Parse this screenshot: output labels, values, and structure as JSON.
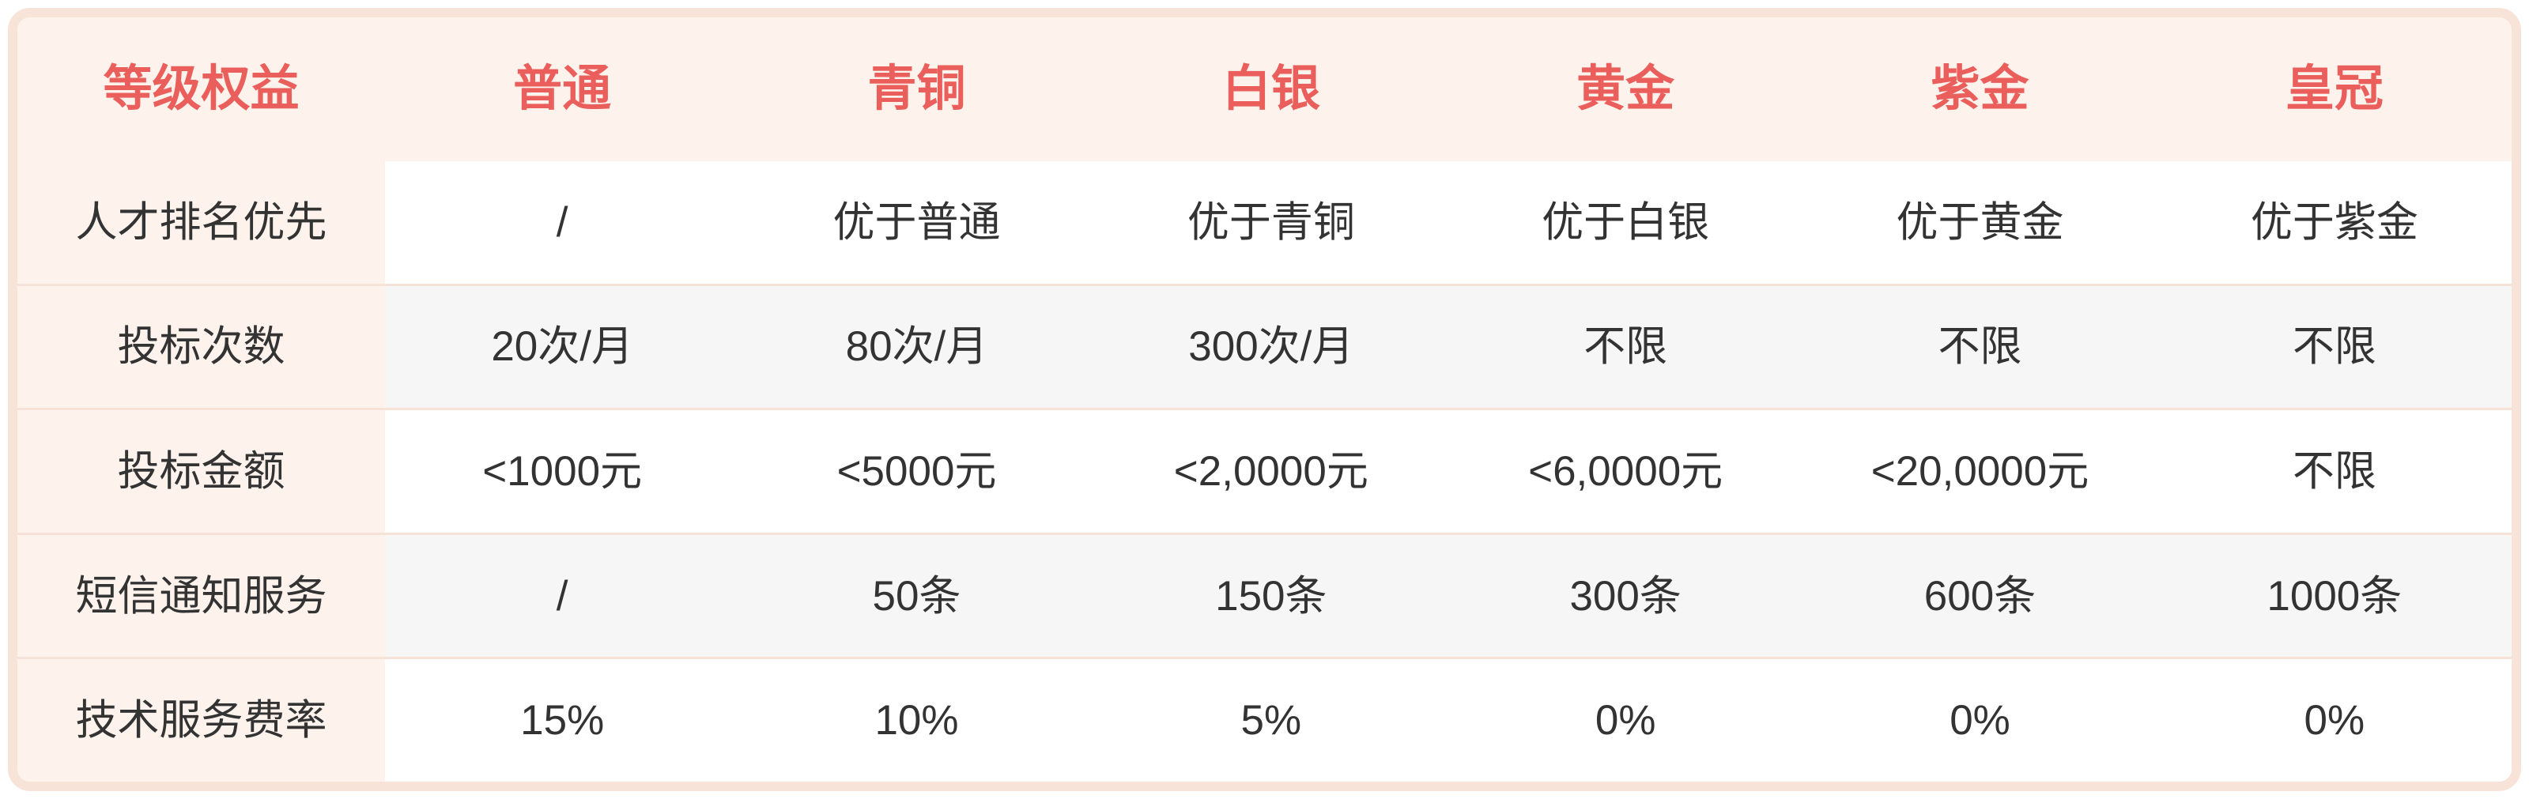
{
  "table": {
    "header": {
      "corner_label": "等级权益",
      "tiers": [
        "普通",
        "青铜",
        "白银",
        "黄金",
        "紫金",
        "皇冠"
      ]
    },
    "rows": [
      {
        "label": "人才排名优先",
        "values": [
          "/",
          "优于普通",
          "优于青铜",
          "优于白银",
          "优于黄金",
          "优于紫金"
        ]
      },
      {
        "label": "投标次数",
        "values": [
          "20次/月",
          "80次/月",
          "300次/月",
          "不限",
          "不限",
          "不限"
        ]
      },
      {
        "label": "投标金额",
        "values": [
          "<1000元",
          "<5000元",
          "<2,0000元",
          "<6,0000元",
          "<20,0000元",
          "不限"
        ]
      },
      {
        "label": "短信通知服务",
        "values": [
          "/",
          "50条",
          "150条",
          "300条",
          "600条",
          "1000条"
        ]
      },
      {
        "label": "技术服务费率",
        "values": [
          "15%",
          "10%",
          "5%",
          "0%",
          "0%",
          "0%"
        ]
      }
    ],
    "colors": {
      "accent": "#ea5f5c",
      "header_bg": "#fdf2ec",
      "border": "#f8e3d9",
      "divider": "#f7e2d7",
      "row_bg": "#ffffff",
      "row_alt_bg": "#f6f6f6",
      "text": "#333333"
    }
  }
}
